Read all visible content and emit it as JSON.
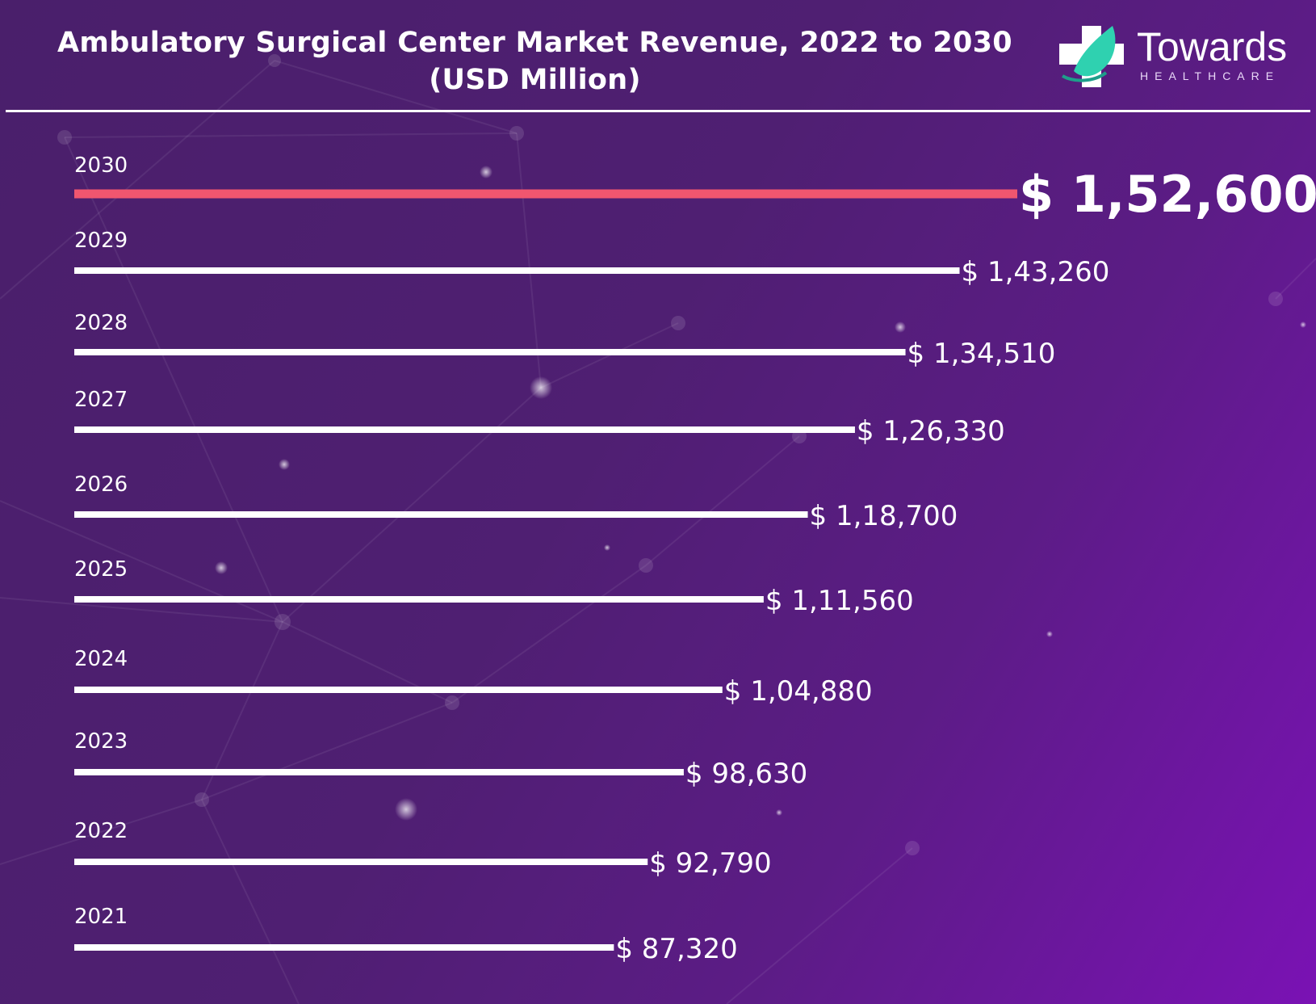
{
  "title": {
    "line1": "Ambulatory Surgical Center Market Revenue, 2022 to 2030",
    "line2": "(USD Million)"
  },
  "logo": {
    "name": "Towards",
    "sub": "HEALTHCARE",
    "icon": "medical-cross-leaf-icon"
  },
  "colors": {
    "background_start": "#4a1f6b",
    "background_end": "#7a12b4",
    "bar": "#ffffff",
    "highlight_bar": "#f0566f",
    "text": "#ffffff"
  },
  "chart_data": {
    "type": "bar",
    "orientation": "horizontal",
    "categories": [
      "2030",
      "2029",
      "2028",
      "2027",
      "2026",
      "2025",
      "2024",
      "2023",
      "2022",
      "2021"
    ],
    "values": [
      152600,
      143260,
      134510,
      126330,
      118700,
      111560,
      104880,
      98630,
      92790,
      87320
    ],
    "value_labels": [
      "$ 1,52,600",
      "$ 1,43,260",
      "$ 1,34,510",
      "$ 1,26,330",
      "$ 1,18,700",
      "$ 1,11,560",
      "$ 1,04,880",
      "$ 98,630",
      "$ 92,790",
      "$ 87,320"
    ],
    "highlight_category": "2030",
    "title": "Ambulatory Surgical Center Market Revenue, 2022 to 2030 (USD Million)",
    "xlabel": "",
    "ylabel": "",
    "grid": false,
    "legend": "none"
  }
}
